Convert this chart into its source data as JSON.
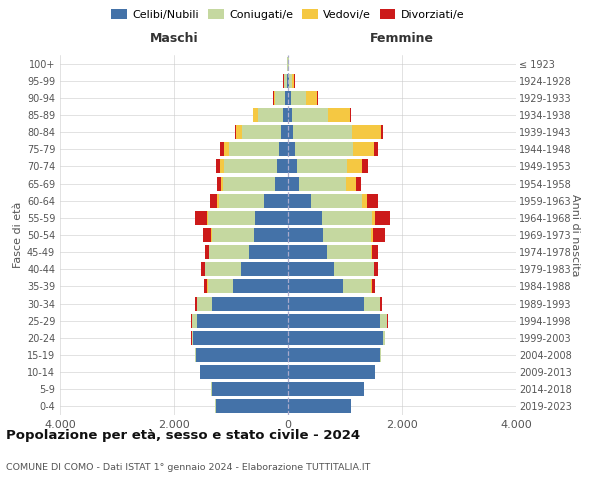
{
  "age_groups": [
    "100+",
    "95-99",
    "90-94",
    "85-89",
    "80-84",
    "75-79",
    "70-74",
    "65-69",
    "60-64",
    "55-59",
    "50-54",
    "45-49",
    "40-44",
    "35-39",
    "30-34",
    "25-29",
    "20-24",
    "15-19",
    "10-14",
    "5-9",
    "0-4"
  ],
  "birth_years": [
    "≤ 1923",
    "1924-1928",
    "1929-1933",
    "1934-1938",
    "1939-1943",
    "1944-1948",
    "1949-1953",
    "1954-1958",
    "1959-1963",
    "1964-1968",
    "1969-1973",
    "1974-1978",
    "1979-1983",
    "1984-1988",
    "1989-1993",
    "1994-1998",
    "1999-2003",
    "2004-2008",
    "2009-2013",
    "2014-2018",
    "2019-2023"
  ],
  "maschi": {
    "celibi": [
      8,
      25,
      55,
      95,
      120,
      155,
      200,
      220,
      420,
      580,
      600,
      690,
      820,
      970,
      1330,
      1590,
      1660,
      1620,
      1540,
      1340,
      1270
    ],
    "coniugati": [
      8,
      45,
      170,
      440,
      680,
      880,
      930,
      920,
      790,
      830,
      740,
      690,
      640,
      440,
      270,
      95,
      25,
      8,
      3,
      3,
      3
    ],
    "vedovi": [
      2,
      8,
      28,
      75,
      115,
      95,
      65,
      38,
      28,
      18,
      8,
      4,
      4,
      4,
      4,
      4,
      4,
      2,
      2,
      2,
      2
    ],
    "divorziati": [
      2,
      4,
      8,
      12,
      18,
      55,
      75,
      75,
      125,
      195,
      135,
      75,
      55,
      55,
      28,
      8,
      4,
      2,
      2,
      2,
      2
    ]
  },
  "femmine": {
    "nubili": [
      8,
      18,
      45,
      75,
      95,
      115,
      155,
      195,
      410,
      590,
      620,
      690,
      810,
      970,
      1340,
      1610,
      1670,
      1620,
      1520,
      1330,
      1100
    ],
    "coniugate": [
      8,
      55,
      270,
      630,
      1030,
      1030,
      880,
      830,
      880,
      880,
      840,
      770,
      690,
      490,
      270,
      125,
      28,
      8,
      3,
      3,
      3
    ],
    "vedove": [
      4,
      38,
      195,
      390,
      510,
      370,
      270,
      165,
      95,
      55,
      38,
      12,
      8,
      8,
      4,
      4,
      4,
      4,
      2,
      2,
      2
    ],
    "divorziate": [
      2,
      4,
      8,
      18,
      28,
      65,
      95,
      95,
      195,
      270,
      195,
      115,
      75,
      65,
      38,
      12,
      4,
      2,
      2,
      2,
      2
    ]
  },
  "colors": {
    "celibi_nubili": "#4472a8",
    "coniugati": "#c5d8a0",
    "vedovi": "#f5c842",
    "divorziati": "#cc1a1a"
  },
  "xlim": 4000,
  "title": "Popolazione per età, sesso e stato civile - 2024",
  "subtitle": "COMUNE DI COMO - Dati ISTAT 1° gennaio 2024 - Elaborazione TUTTITALIA.IT",
  "label_maschi": "Maschi",
  "label_femmine": "Femmine",
  "ylabel_left": "Fasce di età",
  "ylabel_right": "Anni di nascita",
  "legend": [
    "Celibi/Nubili",
    "Coniugati/e",
    "Vedovi/e",
    "Divorziati/e"
  ],
  "bg_color": "#ffffff",
  "grid_color": "#cccccc",
  "text_color": "#555555",
  "title_color": "#111111"
}
